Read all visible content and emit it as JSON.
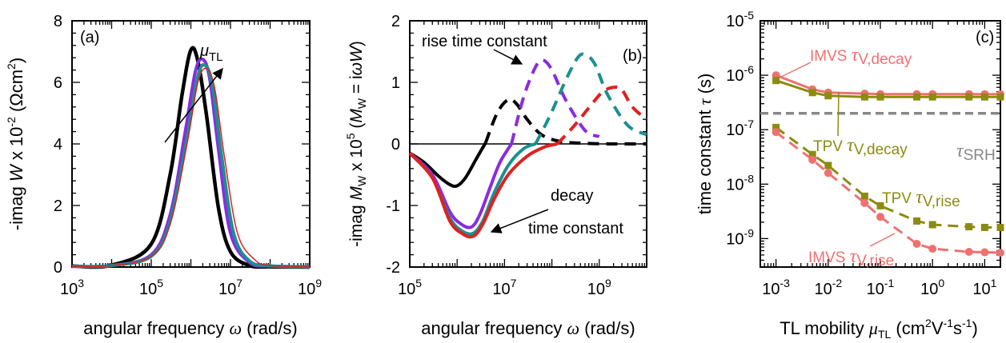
{
  "chart_data": [
    {
      "panel": "(a)",
      "type": "line",
      "xlabel": "angular frequency ω (rad/s)",
      "ylabel": "-imag W x 10⁻² (Ωcm²)",
      "xscale": "log",
      "xlim": [
        1000,
        1000000000
      ],
      "ylim": [
        0,
        8
      ],
      "xticks": [
        1000,
        100000,
        10000000,
        1000000000
      ],
      "xtick_labels": [
        "10³",
        "10⁵",
        "10⁷",
        "10⁹"
      ],
      "yticks": [
        0,
        2,
        4,
        6,
        8
      ],
      "annotation": "μTL",
      "series": [
        {
          "color": "#000000",
          "x": [
            1000,
            10000,
            100000,
            300000,
            600000,
            1000000,
            1500000,
            2500000,
            5000000,
            10000000,
            30000000,
            100000000,
            1000000000
          ],
          "y": [
            0.03,
            0.06,
            0.75,
            3.0,
            5.6,
            7.05,
            6.7,
            4.9,
            1.9,
            0.5,
            0.05,
            0.01,
            0
          ]
        },
        {
          "color": "#8a2be2",
          "x": [
            1000,
            10000,
            100000,
            300000,
            700000,
            1300000,
            2000000,
            3000000,
            5000000,
            10000000,
            30000000,
            100000000,
            1000000000
          ],
          "y": [
            0.02,
            0.05,
            0.4,
            1.7,
            4.3,
            6.35,
            6.75,
            6.1,
            3.8,
            1.1,
            0.15,
            0.03,
            0.01
          ]
        },
        {
          "color": "#1a9090",
          "x": [
            1000,
            10000,
            100000,
            300000,
            800000,
            1500000,
            2300000,
            3500000,
            6000000,
            12000000,
            30000000,
            100000000,
            1000000000
          ],
          "y": [
            0.02,
            0.05,
            0.35,
            1.5,
            4.2,
            6.2,
            6.55,
            5.9,
            3.6,
            1.1,
            0.2,
            0.04,
            0.01
          ]
        },
        {
          "color": "#e02020",
          "x": [
            1000,
            10000,
            100000,
            300000,
            800000,
            1500000,
            2500000,
            4000000,
            7000000,
            15000000,
            40000000,
            100000000,
            1000000000
          ],
          "y": [
            0.02,
            0.05,
            0.35,
            1.4,
            4.0,
            6.0,
            6.45,
            5.8,
            3.6,
            1.1,
            0.25,
            0.05,
            0.02
          ]
        }
      ]
    },
    {
      "panel": "(b)",
      "type": "line",
      "xlabel": "angular frequency ω (rad/s)",
      "ylabel": "-imag MW x 10⁵ (MW = iωW)",
      "xscale": "log",
      "xlim": [
        100000,
        10000000000
      ],
      "ylim": [
        -2,
        2
      ],
      "xticks": [
        100000,
        10000000,
        1000000000
      ],
      "xtick_labels": [
        "10⁵",
        "10⁷",
        "10⁹"
      ],
      "yticks": [
        -2,
        -1,
        0,
        1,
        2
      ],
      "ytick_labels": [
        "-2",
        "-1",
        "0",
        "1",
        "2"
      ],
      "annotations": [
        "rise time constant",
        "decay",
        "time constant"
      ],
      "series": [
        {
          "color": "#000000",
          "style": "solid",
          "x": [
            100000,
            200000,
            400000,
            700000,
            1000000,
            1500000,
            2500000,
            4000000
          ],
          "y": [
            -0.15,
            -0.3,
            -0.52,
            -0.66,
            -0.68,
            -0.55,
            -0.25,
            0.02
          ]
        },
        {
          "color": "#000000",
          "style": "dashed",
          "x": [
            4000000,
            7000000,
            12000000,
            18000000,
            30000000,
            60000000,
            150000000,
            500000000,
            2000000000,
            10000000000
          ],
          "y": [
            0.02,
            0.5,
            0.72,
            0.65,
            0.4,
            0.15,
            0.04,
            0.01,
            0,
            0
          ]
        },
        {
          "color": "#8a2be2",
          "style": "solid",
          "x": [
            100000,
            300000,
            700000,
            1200000,
            2000000,
            3000000,
            5000000,
            8000000,
            14000000
          ],
          "y": [
            -0.15,
            -0.5,
            -1.1,
            -1.3,
            -1.35,
            -1.15,
            -0.7,
            -0.3,
            0
          ]
        },
        {
          "color": "#8a2be2",
          "style": "dashed",
          "x": [
            14000000,
            25000000,
            45000000,
            65000000,
            100000000,
            200000000,
            500000000,
            1000000000
          ],
          "y": [
            0,
            0.75,
            1.25,
            1.36,
            1.2,
            0.7,
            0.22,
            0.12
          ]
        },
        {
          "color": "#1a9090",
          "style": "solid",
          "x": [
            100000,
            300000,
            700000,
            1300000,
            2200000,
            3500000,
            6000000,
            12000000,
            25000000,
            45000000
          ],
          "y": [
            -0.15,
            -0.55,
            -1.2,
            -1.42,
            -1.45,
            -1.25,
            -0.8,
            -0.35,
            -0.08,
            0
          ]
        },
        {
          "color": "#1a9090",
          "style": "dashed",
          "x": [
            45000000,
            90000000,
            200000000,
            350000000,
            500000000,
            800000000,
            1500000000,
            4000000000,
            10000000000
          ],
          "y": [
            0,
            0.45,
            1.05,
            1.4,
            1.45,
            1.3,
            0.8,
            0.3,
            0.15
          ]
        },
        {
          "color": "#e02020",
          "style": "solid",
          "x": [
            100000,
            300000,
            700000,
            1300000,
            2200000,
            3500000,
            6000000,
            12000000,
            30000000,
            70000000,
            130000000
          ],
          "y": [
            -0.15,
            -0.55,
            -1.25,
            -1.46,
            -1.5,
            -1.3,
            -0.9,
            -0.5,
            -0.2,
            -0.05,
            0
          ]
        },
        {
          "color": "#e02020",
          "style": "dashed",
          "x": [
            130000000,
            300000000,
            700000000,
            1200000000,
            2000000000,
            3000000000,
            5000000000,
            10000000000
          ],
          "y": [
            0,
            0.3,
            0.65,
            0.85,
            0.92,
            0.88,
            0.6,
            0.4
          ]
        }
      ]
    },
    {
      "panel": "(c)",
      "type": "line",
      "xlabel": "TL mobility μTL (cm²V⁻¹s⁻¹)",
      "ylabel": "time constant τ (s)",
      "xscale": "log",
      "yscale": "log",
      "xlim": [
        0.0005,
        20
      ],
      "ylim": [
        3e-10,
        1e-05
      ],
      "xticks": [
        0.001,
        0.01,
        0.1,
        1,
        10
      ],
      "xtick_labels": [
        "10⁻³",
        "10⁻²",
        "10⁻¹",
        "10⁰",
        "10¹"
      ],
      "yticks": [
        1e-09,
        1e-08,
        1e-07,
        1e-06,
        1e-05
      ],
      "ytick_labels": [
        "10⁻⁹",
        "10⁻⁸",
        "10⁻⁷",
        "10⁻⁶",
        "10⁻⁵"
      ],
      "series": [
        {
          "name": "IMVS τV,decay",
          "color": "#f07070",
          "marker": "circle",
          "style": "solid",
          "x": [
            0.001,
            0.005,
            0.01,
            0.05,
            0.1,
            0.5,
            1,
            5,
            10,
            20
          ],
          "y": [
            1e-06,
            5.5e-07,
            4.8e-07,
            4.6e-07,
            4.5e-07,
            4.5e-07,
            4.5e-07,
            4.5e-07,
            4.5e-07,
            4.5e-07
          ]
        },
        {
          "name": "TPV τV,decay",
          "color": "#8b8b10",
          "marker": "square",
          "style": "solid",
          "x": [
            0.001,
            0.005,
            0.01,
            0.05,
            0.1,
            0.5,
            1,
            5,
            10,
            20
          ],
          "y": [
            8e-07,
            4.8e-07,
            4.2e-07,
            4e-07,
            4e-07,
            4e-07,
            4e-07,
            4e-07,
            4e-07,
            4e-07
          ]
        },
        {
          "name": "τSRH",
          "color": "#888888",
          "style": "dashed",
          "x": [
            0.0005,
            20
          ],
          "y": [
            2e-07,
            2e-07
          ]
        },
        {
          "name": "TPV τV,rise",
          "color": "#8b8b10",
          "marker": "square",
          "style": "dashed",
          "x": [
            0.001,
            0.005,
            0.01,
            0.05,
            0.1,
            0.5,
            1,
            5,
            10,
            20
          ],
          "y": [
            1.1e-07,
            3.5e-08,
            2.2e-08,
            6e-09,
            4e-09,
            2.1e-09,
            1.8e-09,
            1.65e-09,
            1.6e-09,
            1.6e-09
          ]
        },
        {
          "name": "IMVS τV,rise",
          "color": "#f07070",
          "marker": "circle",
          "style": "dashed",
          "x": [
            0.001,
            0.005,
            0.01,
            0.05,
            0.1,
            0.5,
            1,
            5,
            10,
            20
          ],
          "y": [
            9e-08,
            2.8e-08,
            1.6e-08,
            4.5e-09,
            2.5e-09,
            8e-10,
            6.5e-10,
            5.7e-10,
            5.6e-10,
            5.5e-10
          ]
        }
      ],
      "labels": {
        "imvs_decay": "IMVS τV,decay",
        "tpv_decay": "TPV τV,decay",
        "srh": "τSRH",
        "tpv_rise": "TPV τV,rise",
        "imvs_rise": "IMVS τV,rise"
      }
    }
  ]
}
